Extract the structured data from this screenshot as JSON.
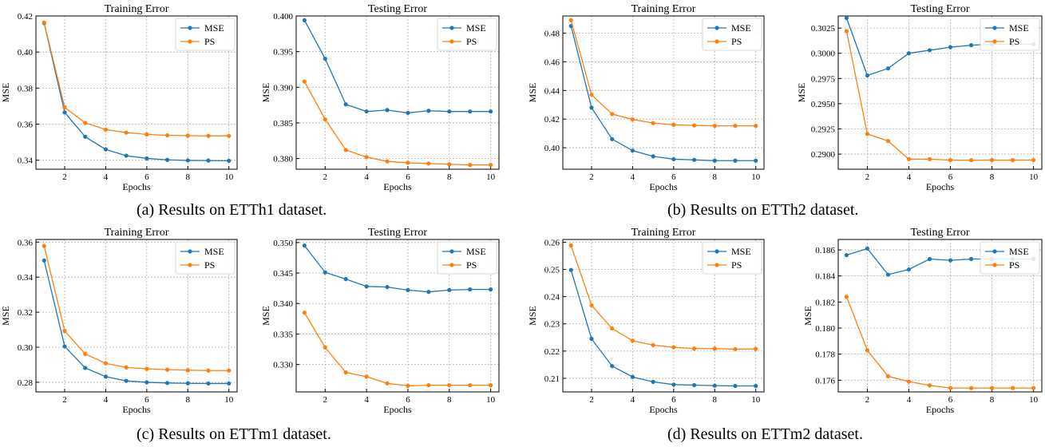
{
  "colors": {
    "mse": "#1f77b4",
    "ps": "#ff7f0e",
    "grid": "#b0b0b0",
    "axis": "#000000"
  },
  "captions": {
    "a": "(a) Results on ETTh1 dataset.",
    "b": "(b) Results on ETTh2 dataset.",
    "c": "(c) Results on ETTm1 dataset.",
    "d": "(d) Results on ETTm2 dataset."
  },
  "chart_data": [
    {
      "type": "line",
      "panel": "a",
      "title": "Training Error",
      "xlabel": "Epochs",
      "ylabel": "MSE",
      "x": [
        1,
        2,
        3,
        4,
        5,
        6,
        7,
        8,
        9,
        10
      ],
      "xticks": [
        2,
        4,
        6,
        8,
        10
      ],
      "xlim": [
        0.6,
        10.4
      ],
      "ylim": [
        0.335,
        0.42
      ],
      "yticks": [
        0.34,
        0.36,
        0.38,
        0.4,
        0.42
      ],
      "ytick_labels": [
        "0.34",
        "0.36",
        "0.38",
        "0.40",
        "0.42"
      ],
      "grid": true,
      "legend": "top-right",
      "series": [
        {
          "name": "MSE",
          "values": [
            0.416,
            0.3665,
            0.353,
            0.346,
            0.3425,
            0.341,
            0.3402,
            0.3399,
            0.3398,
            0.3397
          ]
        },
        {
          "name": "PS",
          "values": [
            0.4163,
            0.3693,
            0.3607,
            0.357,
            0.3553,
            0.3543,
            0.3538,
            0.3536,
            0.3535,
            0.3535
          ]
        }
      ]
    },
    {
      "type": "line",
      "panel": "a",
      "title": "Testing Error",
      "xlabel": "Epochs",
      "ylabel": "MSE",
      "x": [
        1,
        2,
        3,
        4,
        5,
        6,
        7,
        8,
        9,
        10
      ],
      "xticks": [
        2,
        4,
        6,
        8,
        10
      ],
      "xlim": [
        0.6,
        10.4
      ],
      "ylim": [
        0.3785,
        0.4
      ],
      "yticks": [
        0.38,
        0.385,
        0.39,
        0.395,
        0.4
      ],
      "ytick_labels": [
        "0.380",
        "0.385",
        "0.390",
        "0.395",
        "0.400"
      ],
      "grid": true,
      "legend": "top-right",
      "series": [
        {
          "name": "MSE",
          "values": [
            0.3994,
            0.394,
            0.3876,
            0.3866,
            0.3868,
            0.3864,
            0.3867,
            0.3866,
            0.3866,
            0.3866
          ]
        },
        {
          "name": "PS",
          "values": [
            0.3908,
            0.3855,
            0.3812,
            0.3802,
            0.3796,
            0.3794,
            0.3793,
            0.3792,
            0.3791,
            0.3791
          ]
        }
      ]
    },
    {
      "type": "line",
      "panel": "b",
      "title": "Training Error",
      "xlabel": "Epochs",
      "ylabel": "MSE",
      "x": [
        1,
        2,
        3,
        4,
        5,
        6,
        7,
        8,
        9,
        10
      ],
      "xticks": [
        2,
        4,
        6,
        8,
        10
      ],
      "xlim": [
        0.6,
        10.4
      ],
      "ylim": [
        0.385,
        0.492
      ],
      "yticks": [
        0.4,
        0.42,
        0.44,
        0.46,
        0.48
      ],
      "ytick_labels": [
        "0.40",
        "0.42",
        "0.44",
        "0.46",
        "0.48"
      ],
      "grid": true,
      "legend": "top-right",
      "series": [
        {
          "name": "MSE",
          "values": [
            0.485,
            0.428,
            0.406,
            0.398,
            0.394,
            0.392,
            0.3915,
            0.391,
            0.391,
            0.391
          ]
        },
        {
          "name": "PS",
          "values": [
            0.489,
            0.437,
            0.4235,
            0.4198,
            0.4172,
            0.416,
            0.4156,
            0.4153,
            0.4153,
            0.4153
          ]
        }
      ]
    },
    {
      "type": "line",
      "panel": "b",
      "title": "Testing Error",
      "xlabel": "Epochs",
      "ylabel": "MSE",
      "x": [
        1,
        2,
        3,
        4,
        5,
        6,
        7,
        8,
        9,
        10
      ],
      "xticks": [
        2,
        4,
        6,
        8,
        10
      ],
      "xlim": [
        0.6,
        10.4
      ],
      "ylim": [
        0.2885,
        0.3037
      ],
      "yticks": [
        0.29,
        0.2925,
        0.295,
        0.2975,
        0.3,
        0.3025
      ],
      "ytick_labels": [
        "0.2900",
        "0.2925",
        "0.2950",
        "0.2975",
        "0.3000",
        "0.3025"
      ],
      "grid": true,
      "legend": "top-right",
      "series": [
        {
          "name": "MSE",
          "values": [
            0.3035,
            0.2978,
            0.2985,
            0.3,
            0.3003,
            0.3006,
            0.3008,
            0.3009,
            0.3009,
            0.3009
          ]
        },
        {
          "name": "PS",
          "values": [
            0.3022,
            0.292,
            0.2913,
            0.2895,
            0.2895,
            0.2894,
            0.2894,
            0.2894,
            0.2894,
            0.2894
          ]
        }
      ]
    },
    {
      "type": "line",
      "panel": "c",
      "title": "Training Error",
      "xlabel": "Epochs",
      "ylabel": "MSE",
      "x": [
        1,
        2,
        3,
        4,
        5,
        6,
        7,
        8,
        9,
        10
      ],
      "xticks": [
        2,
        4,
        6,
        8,
        10
      ],
      "xlim": [
        0.6,
        10.4
      ],
      "ylim": [
        0.2745,
        0.3615
      ],
      "yticks": [
        0.28,
        0.3,
        0.32,
        0.34,
        0.36
      ],
      "ytick_labels": [
        "0.28",
        "0.30",
        "0.32",
        "0.34",
        "0.36"
      ],
      "grid": true,
      "legend": "top-right",
      "series": [
        {
          "name": "MSE",
          "values": [
            0.3495,
            0.3005,
            0.2882,
            0.2832,
            0.2808,
            0.28,
            0.2796,
            0.2794,
            0.2793,
            0.2793
          ]
        },
        {
          "name": "PS",
          "values": [
            0.3578,
            0.3093,
            0.2962,
            0.2908,
            0.2885,
            0.2877,
            0.2872,
            0.2869,
            0.2867,
            0.2867
          ]
        }
      ]
    },
    {
      "type": "line",
      "panel": "c",
      "title": "Testing Error",
      "xlabel": "Epochs",
      "ylabel": "MSE",
      "x": [
        1,
        2,
        3,
        4,
        5,
        6,
        7,
        8,
        9,
        10
      ],
      "xticks": [
        2,
        4,
        6,
        8,
        10
      ],
      "xlim": [
        0.6,
        10.4
      ],
      "ylim": [
        0.3255,
        0.3505
      ],
      "yticks": [
        0.33,
        0.335,
        0.34,
        0.345,
        0.35
      ],
      "ytick_labels": [
        "0.330",
        "0.335",
        "0.340",
        "0.345",
        "0.350"
      ],
      "grid": true,
      "legend": "top-right",
      "series": [
        {
          "name": "MSE",
          "values": [
            0.3495,
            0.3451,
            0.344,
            0.3428,
            0.3427,
            0.3422,
            0.3419,
            0.3422,
            0.3423,
            0.3423
          ]
        },
        {
          "name": "PS",
          "values": [
            0.3385,
            0.3328,
            0.3287,
            0.328,
            0.3269,
            0.3265,
            0.3266,
            0.3266,
            0.3266,
            0.3266
          ]
        }
      ]
    },
    {
      "type": "line",
      "panel": "d",
      "title": "Training Error",
      "xlabel": "Epochs",
      "ylabel": "MSE",
      "x": [
        1,
        2,
        3,
        4,
        5,
        6,
        7,
        8,
        9,
        10
      ],
      "xticks": [
        2,
        4,
        6,
        8,
        10
      ],
      "xlim": [
        0.6,
        10.4
      ],
      "ylim": [
        0.205,
        0.261
      ],
      "yticks": [
        0.21,
        0.22,
        0.23,
        0.24,
        0.25,
        0.26
      ],
      "ytick_labels": [
        "0.21",
        "0.22",
        "0.23",
        "0.24",
        "0.25",
        "0.26"
      ],
      "grid": true,
      "legend": "top-right",
      "series": [
        {
          "name": "MSE",
          "values": [
            0.2498,
            0.2245,
            0.2145,
            0.2105,
            0.2087,
            0.2077,
            0.2075,
            0.2073,
            0.2072,
            0.2072
          ]
        },
        {
          "name": "PS",
          "values": [
            0.2588,
            0.2368,
            0.2283,
            0.2238,
            0.2222,
            0.2214,
            0.2209,
            0.2209,
            0.2207,
            0.2208
          ]
        }
      ]
    },
    {
      "type": "line",
      "panel": "d",
      "title": "Testing Error",
      "xlabel": "Epochs",
      "ylabel": "MSE",
      "x": [
        1,
        2,
        3,
        4,
        5,
        6,
        7,
        8,
        9,
        10
      ],
      "xticks": [
        2,
        4,
        6,
        8,
        10
      ],
      "xlim": [
        0.6,
        10.4
      ],
      "ylim": [
        0.1751,
        0.1868
      ],
      "yticks": [
        0.176,
        0.178,
        0.18,
        0.182,
        0.184,
        0.186
      ],
      "ytick_labels": [
        "0.176",
        "0.178",
        "0.180",
        "0.182",
        "0.184",
        "0.186"
      ],
      "grid": true,
      "legend": "top-right",
      "series": [
        {
          "name": "MSE",
          "values": [
            0.1856,
            0.1861,
            0.1841,
            0.1845,
            0.1853,
            0.1852,
            0.1853,
            0.1853,
            0.1853,
            0.1853
          ]
        },
        {
          "name": "PS",
          "values": [
            0.1824,
            0.1783,
            0.1763,
            0.1759,
            0.1756,
            0.1754,
            0.1754,
            0.1754,
            0.1754,
            0.1754
          ]
        }
      ]
    }
  ]
}
